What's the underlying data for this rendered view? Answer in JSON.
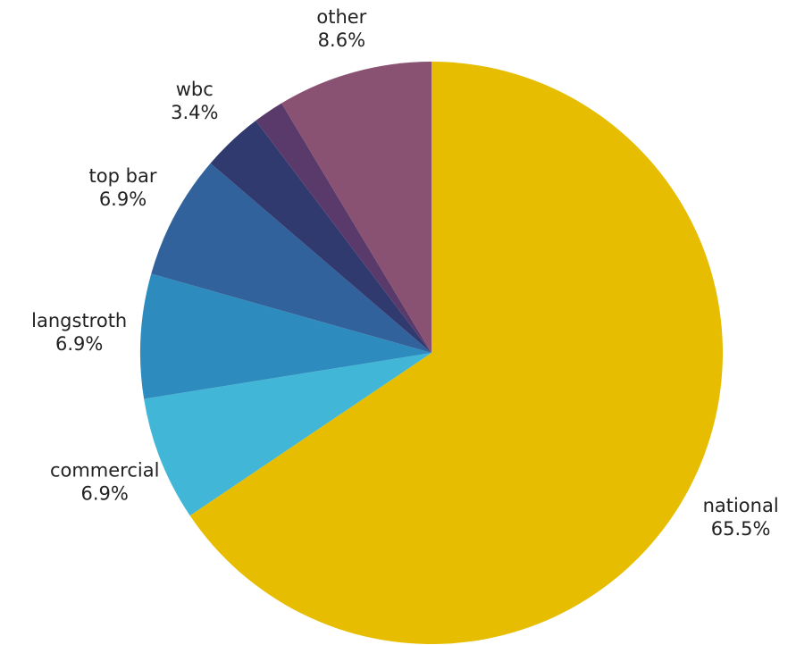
{
  "chart_data": {
    "type": "pie",
    "categories": [
      "national",
      "commercial",
      "langstroth",
      "top bar",
      "wbc",
      null,
      "other"
    ],
    "values": [
      65.5,
      6.9,
      6.9,
      6.9,
      3.4,
      1.7,
      8.6
    ],
    "value_labels": [
      "65.5%",
      "6.9%",
      "6.9%",
      "6.9%",
      "3.4%",
      null,
      "8.6%"
    ],
    "colors": [
      "#e6bd00",
      "#41b6d6",
      "#2e8bbd",
      "#31629b",
      "#313a6e",
      "#5a3a6a",
      "#8a5272"
    ]
  }
}
